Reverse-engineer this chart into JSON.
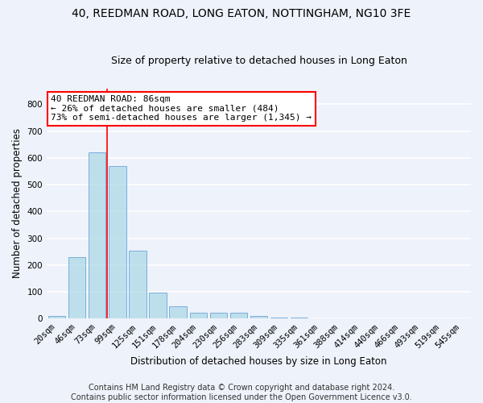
{
  "title": "40, REEDMAN ROAD, LONG EATON, NOTTINGHAM, NG10 3FE",
  "subtitle": "Size of property relative to detached houses in Long Eaton",
  "xlabel": "Distribution of detached houses by size in Long Eaton",
  "ylabel": "Number of detached properties",
  "bar_values": [
    10,
    228,
    620,
    570,
    255,
    97,
    47,
    22,
    22,
    22,
    10,
    4,
    4,
    0,
    0,
    0,
    0,
    0,
    0,
    0,
    0
  ],
  "categories": [
    "20sqm",
    "46sqm",
    "73sqm",
    "99sqm",
    "125sqm",
    "151sqm",
    "178sqm",
    "204sqm",
    "230sqm",
    "256sqm",
    "283sqm",
    "309sqm",
    "335sqm",
    "361sqm",
    "388sqm",
    "414sqm",
    "440sqm",
    "466sqm",
    "493sqm",
    "519sqm",
    "545sqm"
  ],
  "bar_color": "#add8e6",
  "bar_edge_color": "#5b9bd5",
  "bar_alpha": 0.75,
  "vline_x": 2.5,
  "vline_color": "red",
  "ylim": [
    0,
    860
  ],
  "yticks": [
    0,
    100,
    200,
    300,
    400,
    500,
    600,
    700,
    800
  ],
  "annotation_text": "40 REEDMAN ROAD: 86sqm\n← 26% of detached houses are smaller (484)\n73% of semi-detached houses are larger (1,345) →",
  "annotation_box_color": "white",
  "annotation_box_edgecolor": "red",
  "footer_line1": "Contains HM Land Registry data © Crown copyright and database right 2024.",
  "footer_line2": "Contains public sector information licensed under the Open Government Licence v3.0.",
  "bg_color": "#eef2fa",
  "grid_color": "white",
  "title_fontsize": 10,
  "subtitle_fontsize": 9,
  "annot_fontsize": 8,
  "axis_label_fontsize": 8.5,
  "tick_fontsize": 7.5,
  "footer_fontsize": 7
}
